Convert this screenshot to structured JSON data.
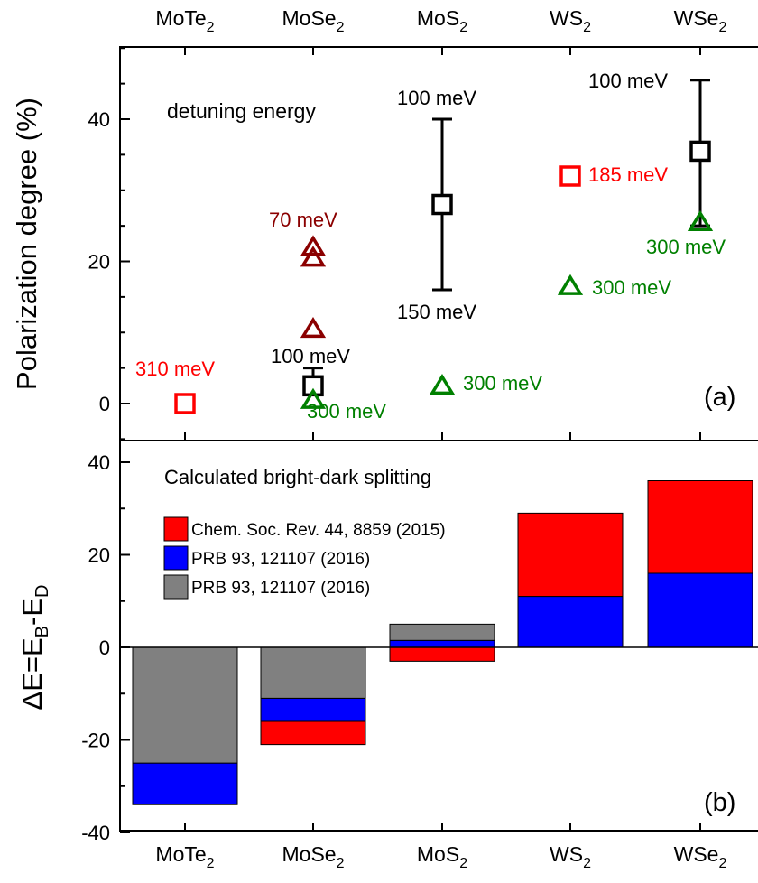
{
  "materials": [
    {
      "base": "MoTe",
      "sub": "2"
    },
    {
      "base": "MoSe",
      "sub": "2"
    },
    {
      "base": "MoS",
      "sub": "2"
    },
    {
      "base": "WS",
      "sub": "2"
    },
    {
      "base": "WSe",
      "sub": "2"
    }
  ],
  "colors": {
    "red": "#ff0000",
    "blue": "#0000ff",
    "gray": "#808080",
    "darkred": "#8b0000",
    "green": "#008000",
    "black": "#000000"
  },
  "chart_data": [
    {
      "type": "scatter",
      "panel_label": "(a)",
      "ylabel": "Polarization degree (%)",
      "ylim": [
        -5,
        55
      ],
      "yticks": [
        0,
        20,
        40
      ],
      "categories": [
        "MoTe2",
        "MoSe2",
        "MoS2",
        "WS2",
        "WSe2"
      ],
      "annotation": "detuning energy",
      "series": [
        {
          "marker": "square",
          "color": "black",
          "points": [
            {
              "x": "MoSe2",
              "y": 2.5,
              "err_low": 1.5,
              "err_high": 5
            },
            {
              "x": "MoS2",
              "y": 28,
              "err_low": 16,
              "err_high": 40
            },
            {
              "x": "WSe2",
              "y": 35.5,
              "err_low": 25,
              "err_high": 45.5
            }
          ]
        },
        {
          "marker": "square",
          "color": "red",
          "points": [
            {
              "x": "MoTe2",
              "y": 0
            },
            {
              "x": "WS2",
              "y": 32
            }
          ]
        },
        {
          "marker": "triangle",
          "color": "darkred",
          "points": [
            {
              "x": "MoSe2",
              "y": 22
            },
            {
              "x": "MoSe2",
              "y": 20.5
            },
            {
              "x": "MoSe2",
              "y": 10.5
            }
          ]
        },
        {
          "marker": "triangle",
          "color": "green",
          "points": [
            {
              "x": "MoSe2",
              "y": 0.5
            },
            {
              "x": "MoS2",
              "y": 2.5
            },
            {
              "x": "WS2",
              "y": 16.5
            },
            {
              "x": "WSe2",
              "y": 25.5
            }
          ]
        }
      ],
      "labels": [
        {
          "text": "310 meV",
          "color": "red"
        },
        {
          "text": "70 meV",
          "color": "darkred"
        },
        {
          "text": "100 meV",
          "color": "black"
        },
        {
          "text": "300 meV",
          "color": "green"
        },
        {
          "text": "100 meV",
          "color": "black"
        },
        {
          "text": "150 meV",
          "color": "black"
        },
        {
          "text": "300 meV",
          "color": "green"
        },
        {
          "text": "185 meV",
          "color": "red"
        },
        {
          "text": "300 meV",
          "color": "green"
        },
        {
          "text": "100 meV",
          "color": "black"
        },
        {
          "text": "300 meV",
          "color": "green"
        }
      ]
    },
    {
      "type": "bar",
      "panel_label": "(b)",
      "title": "Calculated bright-dark splitting",
      "ylabel_parts": [
        "ΔE=E",
        "B",
        "-E",
        "D"
      ],
      "ylim": [
        -40,
        42
      ],
      "yticks": [
        -40,
        -20,
        0,
        20,
        40
      ],
      "categories": [
        "MoTe2",
        "MoSe2",
        "MoS2",
        "WS2",
        "WSe2"
      ],
      "legend": [
        {
          "label": "Chem. Soc. Rev. 44, 8859 (2015)",
          "color": "red"
        },
        {
          "label": "PRB 93, 121107 (2016)",
          "color": "blue"
        },
        {
          "label": "PRB 93, 121107 (2016)",
          "color": "gray"
        }
      ],
      "series": [
        {
          "name": "Chem. Soc. Rev. 44, 8859 (2015)",
          "color": "red",
          "segments": [
            null,
            [
              -16,
              -21
            ],
            [
              0,
              -3
            ],
            [
              11,
              29
            ],
            [
              16,
              36
            ]
          ]
        },
        {
          "name": "PRB 93, 121107 (2016)",
          "color": "blue",
          "segments": [
            [
              -25,
              -34
            ],
            [
              -11,
              -16
            ],
            [
              0,
              1.5
            ],
            [
              0,
              11
            ],
            [
              0,
              16
            ]
          ]
        },
        {
          "name": "PRB 93, 121107 (2016)",
          "color": "gray",
          "segments": [
            [
              0,
              -25
            ],
            [
              0,
              -11
            ],
            [
              1.5,
              5
            ],
            null,
            null
          ]
        }
      ]
    }
  ]
}
